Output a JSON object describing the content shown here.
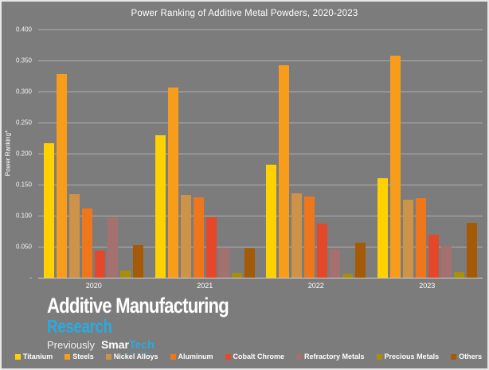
{
  "title": "Power Ranking of Additive Metal Powders, 2020-2023",
  "y_axis_label": "Power Ranking*",
  "chart_data": {
    "type": "bar",
    "title": "Power Ranking of Additive Metal Powders, 2020-2023",
    "xlabel": "",
    "ylabel": "Power Ranking*",
    "ylim": [
      0,
      0.4
    ],
    "ytick_step": 0.05,
    "yticks": [
      "0.400",
      "0.350",
      "0.300",
      "0.250",
      "0.200",
      "0.150",
      "0.100",
      "0.050",
      "-"
    ],
    "grid": true,
    "legend_position": "bottom",
    "categories": [
      "2020",
      "2021",
      "2022",
      "2023"
    ],
    "series": [
      {
        "name": "Titanium",
        "color": "#FFD100",
        "values": [
          0.217,
          0.229,
          0.182,
          0.16
        ]
      },
      {
        "name": "Steels",
        "color": "#F89C1C",
        "values": [
          0.328,
          0.307,
          0.342,
          0.358
        ]
      },
      {
        "name": "Nickel Alloys",
        "color": "#CD9348",
        "values": [
          0.134,
          0.133,
          0.136,
          0.126
        ]
      },
      {
        "name": "Aluminum",
        "color": "#EE771C",
        "values": [
          0.111,
          0.129,
          0.131,
          0.128
        ]
      },
      {
        "name": "Cobalt Chrome",
        "color": "#E5472B",
        "values": [
          0.044,
          0.097,
          0.087,
          0.069
        ]
      },
      {
        "name": "Refractory Metals",
        "color": "#A57070",
        "values": [
          0.097,
          0.047,
          0.046,
          0.051
        ]
      },
      {
        "name": "Precious Metals",
        "color": "#A68F0C",
        "values": [
          0.011,
          0.008,
          0.006,
          0.009
        ]
      },
      {
        "name": "Others",
        "color": "#A45A06",
        "values": [
          0.053,
          0.047,
          0.057,
          0.088
        ]
      }
    ]
  },
  "logo": {
    "line1": "Additive Manufacturing",
    "line2": "Research",
    "previously": "Previously",
    "brand_bold": "Smar",
    "brand_accent": "Tech",
    "analysis": "ANALYSIS",
    "accent_color": "#29ABE2"
  },
  "colors": {
    "background": "#7C7C7C",
    "gridline": "rgba(255,255,255,0.38)",
    "text": "#FFFFFF"
  }
}
